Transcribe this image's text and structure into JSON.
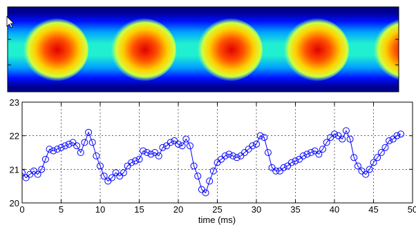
{
  "chart_data": [
    {
      "type": "heatmap",
      "colormap": "jet",
      "hotspot_x_positions": [
        78,
        205,
        330,
        455,
        585
      ]
    },
    {
      "type": "line",
      "xlabel": "time (ms)",
      "ylabel": "",
      "title": "",
      "xlim": [
        0,
        50
      ],
      "ylim": [
        20,
        23
      ],
      "x_ticks": [
        0,
        5,
        10,
        15,
        20,
        25,
        30,
        35,
        40,
        45,
        50
      ],
      "y_ticks": [
        20,
        21,
        22,
        23
      ],
      "grid": true,
      "marker": "circle",
      "color": "#0000ff",
      "x": [
        0,
        0.5,
        1,
        1.5,
        2,
        2.5,
        3,
        3.5,
        4,
        4.5,
        5,
        5.5,
        6,
        6.5,
        7,
        7.5,
        8,
        8.5,
        9,
        9.5,
        10,
        10.5,
        11,
        11.5,
        12,
        12.5,
        13,
        13.5,
        14,
        14.5,
        15,
        15.5,
        16,
        16.5,
        17,
        17.5,
        18,
        18.5,
        19,
        19.5,
        20,
        20.5,
        21,
        21.5,
        22,
        22.5,
        23,
        23.5,
        24,
        24.5,
        25,
        25.5,
        26,
        26.5,
        27,
        27.5,
        28,
        28.5,
        29,
        29.5,
        30,
        30.5,
        31,
        31.5,
        32,
        32.5,
        33,
        33.5,
        34,
        34.5,
        35,
        35.5,
        36,
        36.5,
        37,
        37.5,
        38,
        38.5,
        39,
        39.5,
        40,
        40.5,
        41,
        41.5,
        42,
        42.5,
        43,
        43.5,
        44,
        44.5,
        45,
        45.5,
        46,
        46.5,
        47,
        47.5,
        48,
        48.5
      ],
      "y": [
        20.9,
        20.75,
        20.85,
        20.95,
        20.85,
        21.0,
        21.3,
        21.6,
        21.55,
        21.6,
        21.65,
        21.7,
        21.75,
        21.8,
        21.7,
        21.5,
        21.8,
        22.1,
        21.8,
        21.4,
        21.1,
        20.8,
        20.65,
        20.75,
        20.9,
        20.8,
        20.9,
        21.1,
        21.2,
        21.25,
        21.3,
        21.55,
        21.5,
        21.45,
        21.5,
        21.4,
        21.65,
        21.7,
        21.8,
        21.85,
        21.75,
        21.7,
        21.9,
        21.7,
        21.1,
        20.8,
        20.4,
        20.3,
        20.65,
        20.95,
        21.2,
        21.3,
        21.4,
        21.45,
        21.4,
        21.35,
        21.4,
        21.5,
        21.6,
        21.7,
        21.75,
        22.0,
        21.95,
        21.5,
        21.05,
        20.95,
        20.95,
        21.05,
        21.1,
        21.2,
        21.25,
        21.3,
        21.4,
        21.45,
        21.5,
        21.55,
        21.45,
        21.6,
        21.8,
        21.95,
        22.05,
        22.0,
        21.9,
        22.15,
        21.9,
        21.35,
        21.1,
        20.95,
        20.85,
        21.0,
        21.2,
        21.35,
        21.5,
        21.65,
        21.85,
        21.9,
        22.0,
        22.05
      ]
    }
  ]
}
